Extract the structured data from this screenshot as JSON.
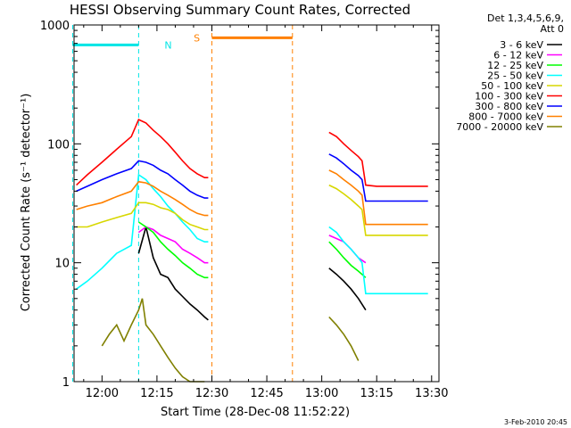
{
  "chart_data": {
    "type": "line",
    "title": "HESSI Observing Summary Count Rates, Corrected",
    "xlabel": "Start Time (28-Dec-08 11:52:22)",
    "ylabel": "Corrected Count Rate (s⁻¹ detector⁻¹)",
    "y_scale": "log",
    "xlim": [
      "11:52:22",
      "13:32:00"
    ],
    "ylim": [
      1,
      1000
    ],
    "x_ticks": [
      "12:00",
      "12:15",
      "12:30",
      "12:45",
      "13:00",
      "13:15",
      "13:30"
    ],
    "y_ticks": [
      "1",
      "10",
      "100",
      "1000"
    ],
    "grid": false,
    "legend_position": "right",
    "legend_header": [
      "Det 1,3,4,5,6,9,",
      "Att 0"
    ],
    "annotations": [
      {
        "text": "N",
        "color": "#00e5e5",
        "x_range": [
          "11:52",
          "12:10"
        ],
        "y": 680
      },
      {
        "text": "S",
        "color": "#ff8000",
        "x_range": [
          "12:30",
          "12:52"
        ],
        "y": 780
      }
    ],
    "series": [
      {
        "name": "3 - 6 keV",
        "color": "#000000",
        "x": [
          "12:10",
          "12:12",
          "12:14",
          "12:16",
          "12:18",
          "12:20",
          "12:22",
          "12:24",
          "12:26",
          "12:28",
          "12:29",
          "13:02",
          "13:04",
          "13:06",
          "13:08",
          "13:10",
          "13:12"
        ],
        "y": [
          12,
          20,
          11,
          8,
          7.5,
          6,
          5.2,
          4.5,
          4,
          3.5,
          3.3,
          9,
          8,
          7,
          6,
          5,
          4
        ]
      },
      {
        "name": "6 - 12 keV",
        "color": "#ff00ff",
        "x": [
          "12:10",
          "12:12",
          "12:14",
          "12:16",
          "12:18",
          "12:20",
          "12:22",
          "12:24",
          "12:26",
          "12:28",
          "12:29",
          "13:02",
          "13:04",
          "13:06",
          "13:08",
          "13:10",
          "13:12"
        ],
        "y": [
          18,
          20,
          19,
          17,
          16,
          15,
          13,
          12,
          11,
          10,
          10,
          17,
          16,
          15,
          13,
          11,
          10
        ]
      },
      {
        "name": "12 - 25 keV",
        "color": "#00ff00",
        "x": [
          "12:10",
          "12:12",
          "12:14",
          "12:16",
          "12:18",
          "12:20",
          "12:22",
          "12:24",
          "12:26",
          "12:28",
          "12:29",
          "13:02",
          "13:04",
          "13:06",
          "13:08",
          "13:10",
          "13:12"
        ],
        "y": [
          22,
          20,
          18,
          15,
          13,
          11.5,
          10,
          9,
          8,
          7.5,
          7.5,
          15,
          13,
          11,
          9.5,
          8.5,
          7.5
        ]
      },
      {
        "name": "25 - 50 keV",
        "color": "#00ffff",
        "x": [
          "11:53",
          "11:56",
          "12:00",
          "12:04",
          "12:08",
          "12:10",
          "12:12",
          "12:14",
          "12:16",
          "12:18",
          "12:20",
          "12:22",
          "12:24",
          "12:26",
          "12:28",
          "12:29",
          "13:02",
          "13:04",
          "13:06",
          "13:08",
          "13:10",
          "13:11",
          "13:12",
          "13:15",
          "13:20",
          "13:25",
          "13:29"
        ],
        "y": [
          6,
          7,
          9,
          12,
          14,
          55,
          50,
          42,
          36,
          30,
          26,
          22,
          19,
          16,
          15,
          15,
          20,
          18,
          15,
          13,
          11,
          10,
          5.5,
          5.5,
          5.5,
          5.5,
          5.5
        ]
      },
      {
        "name": "50 - 100 keV",
        "color": "#d7d700",
        "x": [
          "11:53",
          "11:56",
          "12:00",
          "12:04",
          "12:08",
          "12:10",
          "12:12",
          "12:14",
          "12:16",
          "12:18",
          "12:20",
          "12:22",
          "12:24",
          "12:26",
          "12:28",
          "12:29",
          "13:02",
          "13:04",
          "13:06",
          "13:08",
          "13:10",
          "13:11",
          "13:12",
          "13:15",
          "13:20",
          "13:25",
          "13:29"
        ],
        "y": [
          20,
          20,
          22,
          24,
          26,
          32,
          32,
          31,
          29,
          28,
          26,
          23,
          21,
          20,
          19,
          19,
          45,
          42,
          38,
          34,
          30,
          28,
          17,
          17,
          17,
          17,
          17
        ]
      },
      {
        "name": "100 - 300 keV",
        "color": "#ff0000",
        "x": [
          "11:53",
          "11:56",
          "12:00",
          "12:04",
          "12:08",
          "12:10",
          "12:12",
          "12:14",
          "12:16",
          "12:18",
          "12:20",
          "12:22",
          "12:24",
          "12:26",
          "12:28",
          "12:29",
          "13:02",
          "13:04",
          "13:06",
          "13:08",
          "13:10",
          "13:11",
          "13:12",
          "13:15",
          "13:20",
          "13:25",
          "13:29"
        ],
        "y": [
          45,
          55,
          70,
          90,
          115,
          160,
          150,
          130,
          115,
          100,
          85,
          72,
          62,
          56,
          52,
          52,
          125,
          115,
          100,
          88,
          78,
          72,
          45,
          44,
          44,
          44,
          44
        ]
      },
      {
        "name": "300 - 800 keV",
        "color": "#0000ff",
        "x": [
          "11:53",
          "11:56",
          "12:00",
          "12:04",
          "12:08",
          "12:10",
          "12:12",
          "12:14",
          "12:16",
          "12:18",
          "12:20",
          "12:22",
          "12:24",
          "12:26",
          "12:28",
          "12:29",
          "13:02",
          "13:04",
          "13:06",
          "13:08",
          "13:10",
          "13:11",
          "13:12",
          "13:15",
          "13:20",
          "13:25",
          "13:29"
        ],
        "y": [
          40,
          44,
          50,
          56,
          62,
          72,
          70,
          66,
          60,
          56,
          50,
          45,
          40,
          37,
          35,
          35,
          82,
          76,
          68,
          60,
          54,
          50,
          33,
          33,
          33,
          33,
          33
        ]
      },
      {
        "name": "800 - 7000 keV",
        "color": "#ff8000",
        "x": [
          "11:53",
          "11:56",
          "12:00",
          "12:04",
          "12:08",
          "12:10",
          "12:12",
          "12:14",
          "12:16",
          "12:18",
          "12:20",
          "12:22",
          "12:24",
          "12:26",
          "12:28",
          "12:29",
          "13:02",
          "13:04",
          "13:06",
          "13:08",
          "13:10",
          "13:11",
          "13:12",
          "13:15",
          "13:20",
          "13:25",
          "13:29"
        ],
        "y": [
          28,
          30,
          32,
          36,
          40,
          48,
          47,
          44,
          40,
          37,
          34,
          31,
          28,
          26,
          25,
          25,
          60,
          56,
          50,
          45,
          40,
          37,
          21,
          21,
          21,
          21,
          21
        ]
      },
      {
        "name": "7000 - 20000 keV",
        "color": "#808000",
        "x": [
          "12:00",
          "12:02",
          "12:04",
          "12:06",
          "12:08",
          "12:10",
          "12:11",
          "12:12",
          "12:14",
          "12:16",
          "12:18",
          "12:20",
          "12:22",
          "12:24",
          "12:26",
          "12:28",
          "13:02",
          "13:04",
          "13:06",
          "13:08",
          "13:10"
        ],
        "y": [
          2,
          2.5,
          3,
          2.2,
          3,
          4,
          5,
          3,
          2.5,
          2,
          1.6,
          1.3,
          1.1,
          1,
          1,
          1,
          3.5,
          3,
          2.5,
          2,
          1.5
        ]
      }
    ]
  },
  "footer": {
    "timestamp": "3-Feb-2010 20:45"
  }
}
